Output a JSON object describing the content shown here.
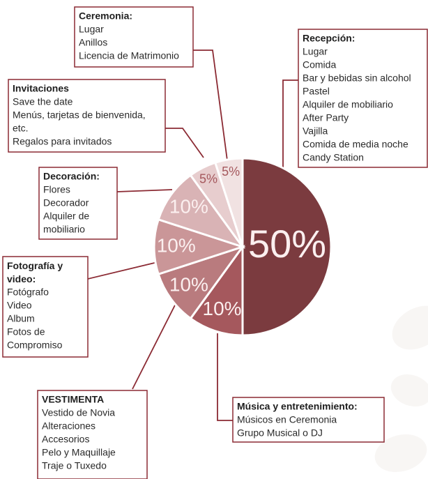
{
  "chart_data": {
    "type": "pie",
    "categories": [
      "Recepción:",
      "Música y entretenimiento:",
      "VESTIMENTA",
      "Fotografía y video:",
      "Decoración:",
      "Invitaciones",
      "Ceremonia:"
    ],
    "values": [
      50,
      10,
      10,
      10,
      10,
      5,
      5
    ],
    "value_labels": [
      "50%",
      "10%",
      "10%",
      "10%",
      "10%",
      "5%",
      "5%"
    ],
    "colors": [
      "#7b3b3f",
      "#a5585d",
      "#b97b7e",
      "#ca9698",
      "#d9b3b5",
      "#e7cdce",
      "#f1e2e2"
    ],
    "items": [
      [
        "Lugar",
        "Comida",
        "Bar y bebidas sin alcohol",
        "Pastel",
        "Alquiler de mobiliario",
        "After Party",
        "Vajilla",
        "Comida de media noche",
        "Candy Station"
      ],
      [
        "Músicos en Ceremonia",
        "Grupo Musical o DJ"
      ],
      [
        "Vestido de Novia",
        "Alteraciones",
        "Accesorios",
        "Pelo y Maquillaje",
        "Traje o Tuxedo"
      ],
      [
        "Fotógrafo",
        "Video",
        "Album",
        "Fotos de",
        "Compromiso"
      ],
      [
        "Flores",
        "Decorador",
        "Alquiler de",
        "mobiliario"
      ],
      [
        "Save the date",
        "Menús, tarjetas de bienvenida,",
        "etc.",
        "Regalos para invitados"
      ],
      [
        "Lugar",
        "Anillos",
        "Licencia de Matrimonio"
      ]
    ]
  }
}
